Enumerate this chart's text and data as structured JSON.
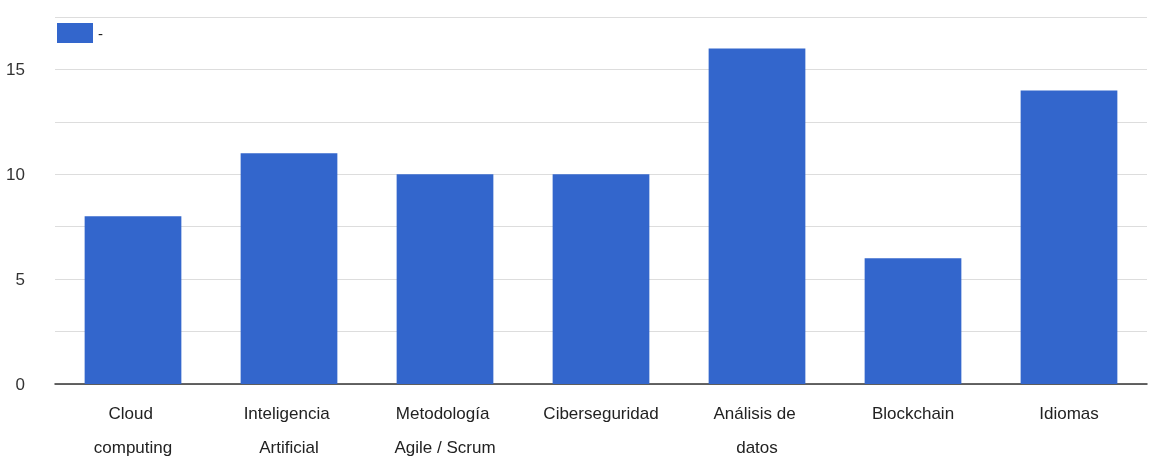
{
  "chart_data": {
    "type": "bar",
    "categories": [
      "Cloud computing",
      "Inteligencia Artificial",
      "Metodología Agile / Scrum",
      "Ciberseguridad",
      "Análisis de datos",
      "Blockchain",
      "Idiomas"
    ],
    "series": [
      {
        "name": "-",
        "color": "#3366cc",
        "values": [
          8,
          11,
          10,
          10,
          16,
          6,
          14
        ]
      }
    ],
    "ylim": [
      0,
      17.5
    ],
    "yticks": [
      0,
      {
        "value": 2.5,
        "label": null
      },
      5,
      {
        "value": 7.5,
        "label": null
      },
      10,
      {
        "value": 12.5,
        "label": null
      },
      15,
      {
        "value": 17.5,
        "label": null
      }
    ],
    "grid": "y",
    "legend": "top left"
  }
}
